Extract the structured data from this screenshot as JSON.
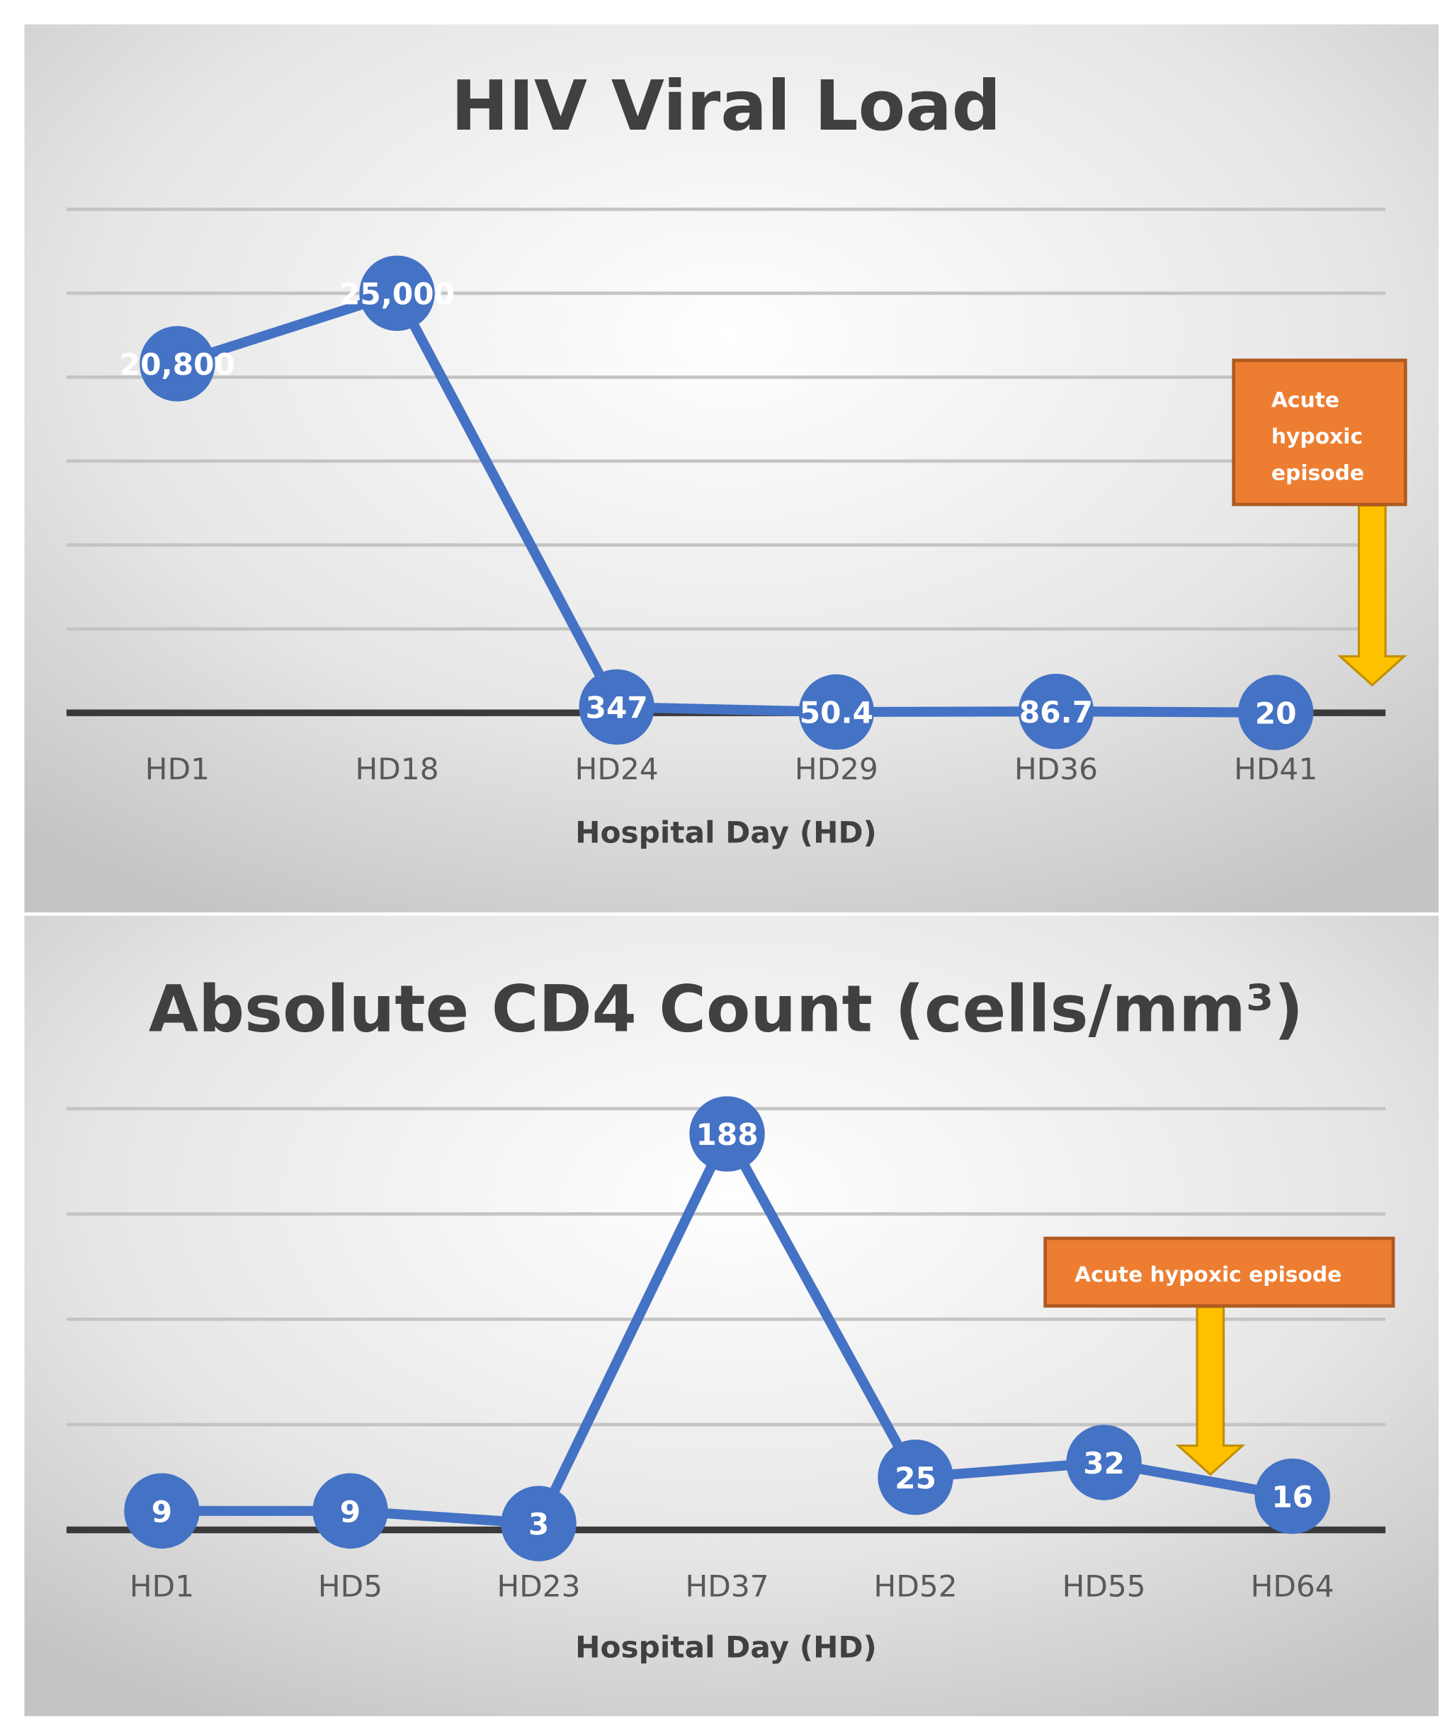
{
  "chart_data": [
    {
      "type": "line",
      "title": "HIV Viral Load",
      "xlabel": "Hospital Day (HD)",
      "ylabel": "",
      "categories": [
        "HD1",
        "HD18",
        "HD24",
        "HD29",
        "HD36",
        "HD41"
      ],
      "values": [
        20800,
        25000,
        347,
        50.4,
        86.7,
        20
      ],
      "data_labels": [
        "20,800",
        "25,000",
        "347",
        "50.4",
        "86.7",
        "20"
      ],
      "ylim": [
        0,
        30000
      ],
      "ystep": 5000,
      "grid": true,
      "annotation": {
        "lines": [
          "Acute",
          "hypoxic",
          "episode"
        ],
        "after_category": "HD41"
      },
      "color": "#4472C4"
    },
    {
      "type": "line",
      "title": "Absolute CD4 Count (cells/mm³)",
      "xlabel": "Hospital Day (HD)",
      "ylabel": "",
      "categories": [
        "HD1",
        "HD5",
        "HD23",
        "HD37",
        "HD52",
        "HD55",
        "HD64"
      ],
      "values": [
        9,
        9,
        3,
        188,
        25,
        32,
        16
      ],
      "data_labels": [
        "9",
        "9",
        "3",
        "188",
        "25",
        "32",
        "16"
      ],
      "ylim": [
        0,
        200
      ],
      "ystep": 50,
      "grid": true,
      "annotation": {
        "lines": [
          "Acute hypoxic episode"
        ],
        "between_categories": [
          "HD55",
          "HD64"
        ]
      },
      "color": "#4472C4"
    }
  ],
  "colors": {
    "series": "#4472C4",
    "annotation_box": "#ED7D31",
    "annotation_border": "#AE5A21",
    "arrow": "#FFC000",
    "arrow_border": "#BF9000"
  }
}
